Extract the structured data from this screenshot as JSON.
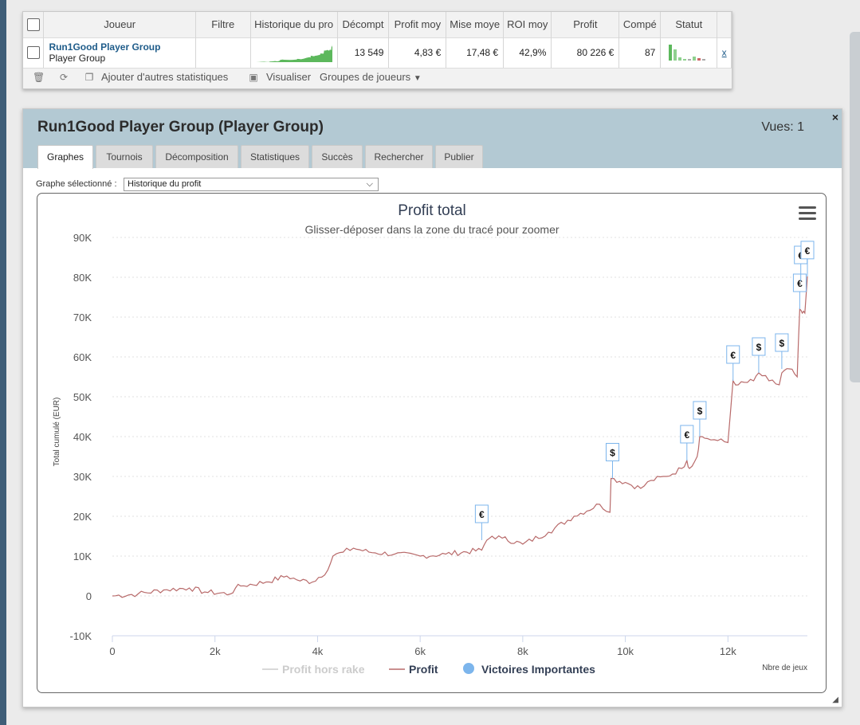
{
  "players_table": {
    "headers": [
      "Joueur",
      "Filtre",
      "Historique du pro",
      "Décompt",
      "Profit moy",
      "Mise moye",
      "ROI moy",
      "Profit",
      "Compé",
      "Statut"
    ],
    "row": {
      "name": "Run1Good Player Group",
      "type": "Player Group",
      "filter": "",
      "decompte": "13 549",
      "profit_moy": "4,83 €",
      "mise_moy": "17,48 €",
      "roi_moy": "42,9%",
      "profit": "80 226 €",
      "competitions": "87",
      "remove": "x"
    }
  },
  "toolbar": {
    "add_stats": "Ajouter d'autres statistiques",
    "visualize": "Visualiser",
    "player_groups": "Groupes de joueurs"
  },
  "panel": {
    "title": "Run1Good Player Group (Player Group)",
    "views": "Vues: 1",
    "close": "×",
    "tabs": [
      "Graphes",
      "Tournois",
      "Décomposition",
      "Statistiques",
      "Succès",
      "Rechercher",
      "Publier"
    ],
    "graph_select_label": "Graphe sélectionné :",
    "graph_select_value": "Historique du profit"
  },
  "colors": {
    "profit_line": "#b86a6a",
    "rake_line": "#cccccc",
    "marker": "#7cb5ec",
    "title": "#333f55"
  },
  "chart_data": {
    "type": "line",
    "title": "Profit total",
    "subtitle": "Glisser-déposer dans la zone du tracé pour zoomer",
    "xlabel": "Nbre de jeux",
    "ylabel": "Total cumulé (EUR)",
    "xlim": [
      0,
      13549
    ],
    "ylim": [
      -10000,
      90000
    ],
    "x_ticks": [
      "0",
      "2k",
      "4k",
      "6k",
      "8k",
      "10k",
      "12k"
    ],
    "x_tick_values": [
      0,
      2000,
      4000,
      6000,
      8000,
      10000,
      12000
    ],
    "y_ticks": [
      "-10K",
      "0",
      "10K",
      "20K",
      "30K",
      "40K",
      "50K",
      "60K",
      "70K",
      "80K",
      "90K"
    ],
    "y_tick_values": [
      -10000,
      0,
      10000,
      20000,
      30000,
      40000,
      50000,
      60000,
      70000,
      80000,
      90000
    ],
    "legend": [
      "Profit hors rake",
      "Profit",
      "Victoires Importantes"
    ],
    "series": [
      {
        "name": "Profit",
        "x": [
          0,
          500,
          1000,
          1500,
          1800,
          2300,
          2400,
          2500,
          3000,
          3400,
          3600,
          3900,
          4200,
          4300,
          4500,
          4700,
          5000,
          5500,
          6000,
          6500,
          7200,
          7300,
          7400,
          7600,
          8000,
          8500,
          9000,
          9500,
          9700,
          9720,
          10000,
          10300,
          10500,
          10800,
          11100,
          11200,
          11250,
          11400,
          11450,
          11600,
          11800,
          12000,
          12100,
          12200,
          12500,
          12600,
          12800,
          13000,
          13050,
          13200,
          13350,
          13400,
          13450,
          13500,
          13549
        ],
        "y": [
          0,
          500,
          1500,
          2000,
          1000,
          500,
          2000,
          2500,
          3500,
          5000,
          4000,
          3500,
          6500,
          10000,
          11000,
          12000,
          11000,
          10500,
          10000,
          10500,
          11500,
          14000,
          15000,
          14500,
          13000,
          16000,
          20000,
          23000,
          21000,
          29500,
          28500,
          27000,
          29000,
          30000,
          32000,
          34000,
          32000,
          35000,
          40000,
          39500,
          39000,
          38500,
          54000,
          53000,
          54000,
          56000,
          54000,
          53000,
          56000,
          57000,
          55000,
          72000,
          71000,
          71000,
          80226
        ]
      },
      {
        "name": "Victoires Importantes",
        "x": [
          7200,
          9750,
          11200,
          11450,
          12100,
          12600,
          13050,
          13400,
          13420,
          13549
        ],
        "y": [
          14000,
          29500,
          34000,
          40000,
          54000,
          56000,
          57000,
          72000,
          79000,
          80226
        ],
        "labels": [
          "€",
          "$",
          "€",
          "$",
          "€",
          "$",
          "$",
          "€",
          "€",
          "€"
        ]
      }
    ]
  }
}
